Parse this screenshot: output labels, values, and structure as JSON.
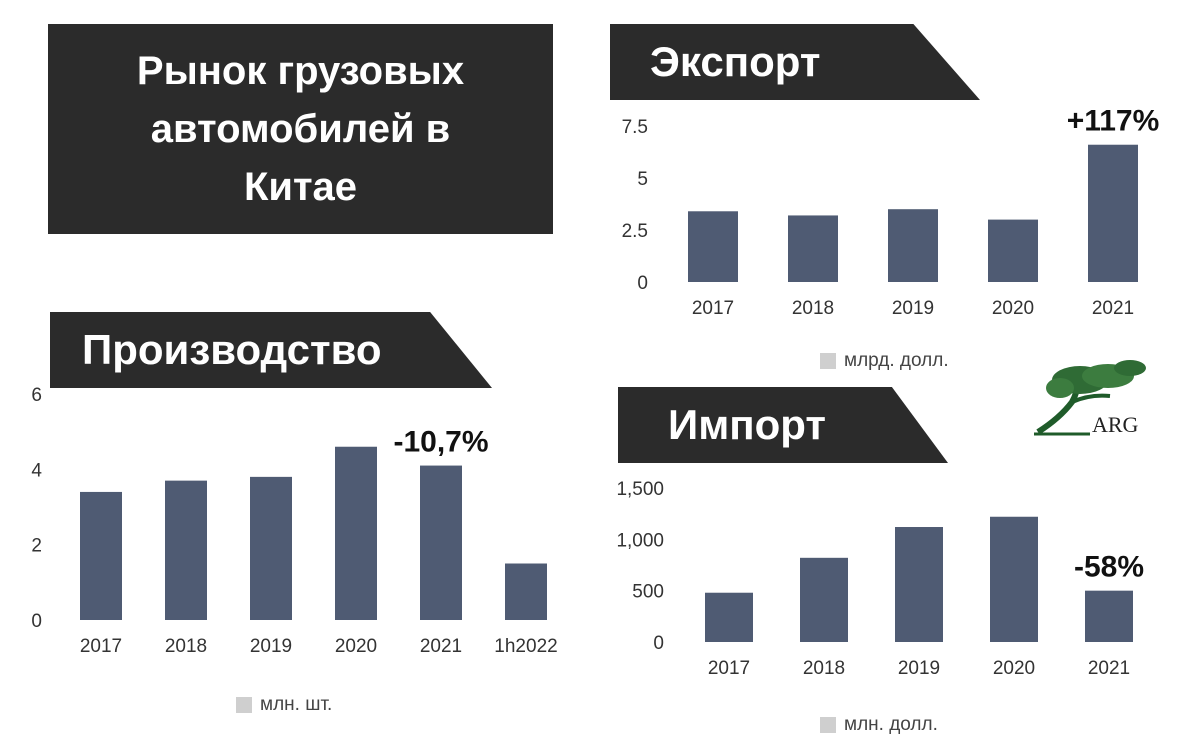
{
  "title": "Рынок грузовых автомобилей в Китае",
  "colors": {
    "bar": "#4f5b73",
    "banner": "#2b2b2b",
    "legend_swatch": "#cfcfcf"
  },
  "logo": {
    "text": "ARG"
  },
  "chart_data": [
    {
      "id": "export",
      "type": "bar",
      "title": "Экспорт",
      "categories": [
        "2017",
        "2018",
        "2019",
        "2020",
        "2021"
      ],
      "values": [
        3.4,
        3.2,
        3.5,
        3.0,
        6.6
      ],
      "yticks": [
        "0",
        "2.5",
        "5",
        "7.5"
      ],
      "ylim": [
        0,
        7.5
      ],
      "legend": "млрд. долл.",
      "annotation": {
        "text": "+117%",
        "category": "2021"
      }
    },
    {
      "id": "production",
      "type": "bar",
      "title": "Производство",
      "categories": [
        "2017",
        "2018",
        "2019",
        "2020",
        "2021",
        "1h2022"
      ],
      "values": [
        3.4,
        3.7,
        3.8,
        4.6,
        4.1,
        1.5
      ],
      "yticks": [
        "0",
        "2",
        "4",
        "6"
      ],
      "ylim": [
        0,
        6
      ],
      "legend": "млн. шт.",
      "annotation": {
        "text": "-10,7%",
        "category": "2021"
      }
    },
    {
      "id": "import",
      "type": "bar",
      "title": "Импорт",
      "categories": [
        "2017",
        "2018",
        "2019",
        "2020",
        "2021"
      ],
      "values": [
        480,
        820,
        1120,
        1220,
        500
      ],
      "yticks": [
        "0",
        "500",
        "1,000",
        "1,500"
      ],
      "ylim": [
        0,
        1500
      ],
      "legend": "млн. долл.",
      "annotation": {
        "text": "-58%",
        "category": "2021"
      }
    }
  ]
}
